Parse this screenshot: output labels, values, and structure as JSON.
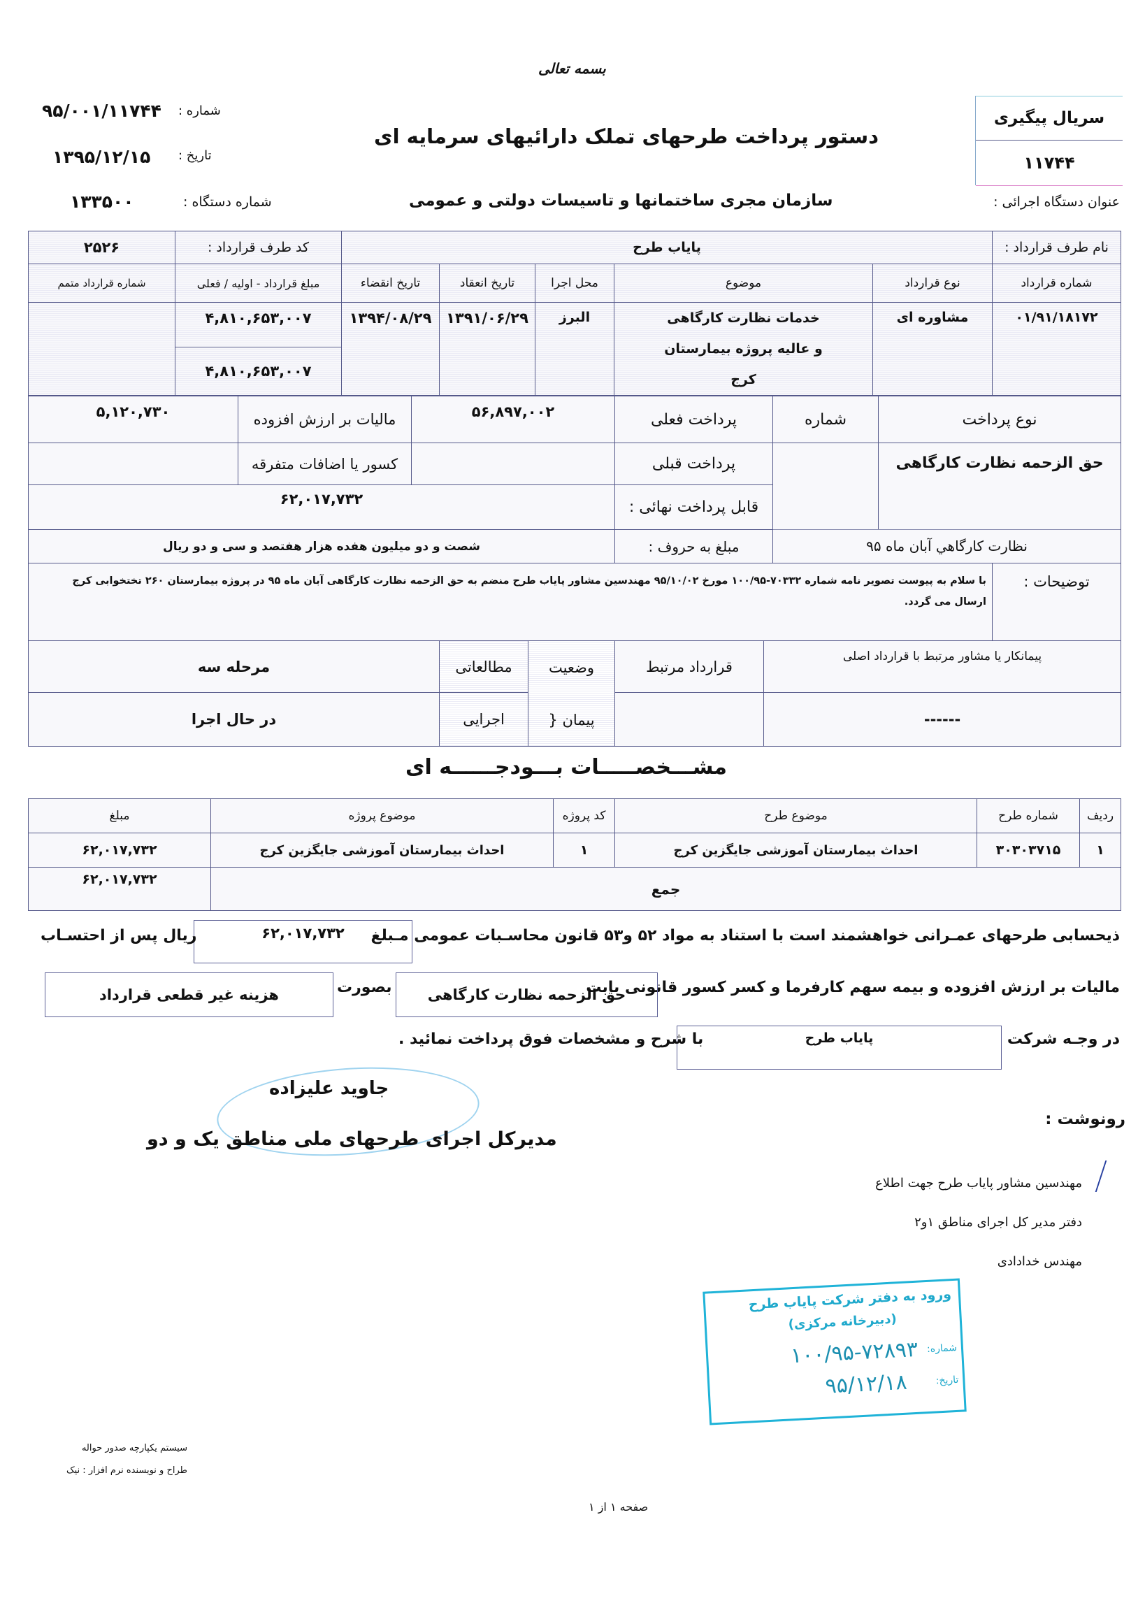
{
  "header": {
    "bismillah": "بسمه تعالی",
    "title": "دستور پرداخت طرحهای تملک دارائیهای سرمایه ای",
    "number_label": "شماره :",
    "number_value": "۹۵/۰۰۱/۱۱۷۴۴",
    "date_label": "تاریخ :",
    "date_value": "۱۳۹۵/۱۲/۱۵",
    "device_number_label": "شماره دستگاه :",
    "device_number_value": "۱۳۳۵۰۰",
    "executive_device_label": "عنوان دستگاه اجرائی :",
    "executive_device_value": "سازمان مجری ساختمانها و تاسیسات دولتی و عمومی",
    "tracking_serial_label": "سریال پیگیری",
    "tracking_serial_value": "۱۱۷۴۴"
  },
  "contract": {
    "party_name_label": "نام طرف قرارداد :",
    "party_name_value": "پایاب طرح",
    "party_code_label": "کد طرف قرارداد :",
    "party_code_value": "۲۵۲۶",
    "headers": {
      "contract_number": "شماره قرارداد",
      "contract_type": "نوع قرارداد",
      "subject": "موضوع",
      "location": "محل اجرا",
      "start_date": "تاریخ انعقاد",
      "end_date": "تاریخ انقضاء",
      "amount": "مبلغ قرارداد - اولیه / فعلی",
      "supplement_number": "شماره قرارداد متمم"
    },
    "values": {
      "contract_number": "۰۱/۹۱/۱۸۱۷۲",
      "contract_type": "مشاوره ای",
      "subject": "خدمات نظارت کارگاهی و عالیه پروژه بیمارستان کرج",
      "location": "البرز",
      "start_date": "۱۳۹۱/۰۶/۲۹",
      "end_date": "۱۳۹۴/۰۸/۲۹",
      "amount_initial": "۴,۸۱۰,۶۵۳,۰۰۷",
      "amount_current": "۴,۸۱۰,۶۵۳,۰۰۷",
      "supplement_number": ""
    }
  },
  "payment": {
    "type_label": "نوع پرداخت",
    "type_value": "حق الزحمه نظارت کارگاهی",
    "number_label": "شماره",
    "current_label": "پرداخت فعلی",
    "current_value": "۵۶,۸۹۷,۰۰۲",
    "previous_label": "پرداخت قبلی",
    "vat_label": "مالیات بر ارزش افزوده",
    "vat_value": "۵,۱۲۰,۷۳۰",
    "misc_label": "کسور یا اضافات متفرقه",
    "final_label": "قابل پرداخت نهائی :",
    "final_value": "۶۲,۰۱۷,۷۳۲",
    "words_label": "مبلغ به حروف :",
    "words_value": "شصت و دو میلیون هفده هزار هفتصد و سی و دو ریال",
    "period_note": "نظارت کارگاهي آبان ماه ۹۵"
  },
  "notes": {
    "label": "توضیحات :",
    "text": "با سلام به پیوست تصویر نامه شماره ۷۰۳۳۲-۱۰۰/۹۵ مورخ ۹۵/۱۰/۰۲ مهندسین مشاور پایاب طرح منضم به حق الزحمه نظارت کارگاهی آبان ماه ۹۵ در پروژه بیمارستان ۲۶۰ تختخوابی کرج ارسال می گردد."
  },
  "status": {
    "related_party_label": "پیمانکار یا مشاور مرتبط با قرارداد اصلی",
    "related_party_value": "------",
    "related_contract_label": "قرارداد مرتبط",
    "status_label": "وضعیت",
    "contract_label": "پیمان {",
    "study_label": "مطالعاتی",
    "execution_label": "اجرایی",
    "stage_value": "مرحله سه",
    "progress_value": "در حال اجرا"
  },
  "budget": {
    "title": "مشـــخصـــــات بـــودجــــــه ای",
    "headers": [
      "ردیف",
      "شماره طرح",
      "موضوع طرح",
      "کد پروژه",
      "موضوع پروژه",
      "مبلغ"
    ],
    "rows": [
      [
        "۱",
        "۳۰۳۰۳۷۱۵",
        "احداث بیمارستان آموزشی جایگزین کرج",
        "۱",
        "احداث بیمارستان آموزشی جایگزین کرج",
        "۶۲,۰۱۷,۷۳۲"
      ]
    ],
    "total_label": "جمع",
    "total_value": "۶۲,۰۱۷,۷۳۲"
  },
  "order": {
    "line1_text": "ذیحسابی طرحهای عمـرانی خواهشمند است با استناد به مواد ۵۲ و۵۳ قانون محاسـبات عمومی مـبلغ",
    "line1_amount": "۶۲,۰۱۷,۷۳۲",
    "line1_suffix": "ریال پس از احتسـاب",
    "line2_text": "مالیات بر ارزش افزوده و بیمه سهم کارفرما و کسر کسور قانونی بابت",
    "line2_box1": "حق الزحمه نظارت کارگاهی",
    "line2_mid": "بصورت",
    "line2_box2": "هزینه غیر قطعی قرارداد",
    "line3_prefix": "در وجـه شرکت",
    "line3_box": "پایاب طرح",
    "line3_suffix": "با شرح و مشخصات فوق پرداخت نمائید ."
  },
  "signature": {
    "name": "جاوید علیزاده",
    "title": "مدیرکل اجرای طرحهای ملی مناطق یک و دو"
  },
  "cc": {
    "label": "رونوشت :",
    "items": [
      "مهندسین مشاور پایاب طرح جهت اطلاع",
      "دفتر مدیر کل اجرای مناطق ۱و۲",
      "مهندس خدادادی"
    ]
  },
  "stamp": {
    "line1": "ورود به دفتر شرکت پایاب طرح",
    "line2": "(دبیرخانه مرکزی)",
    "number_label": "شماره:",
    "number_value": "۱۰۰/۹۵-۷۲۸۹۳",
    "date_label": "تاریخ:",
    "date_value": "۹۵/۱۲/۱۸"
  },
  "footer": {
    "system_line1": "سیستم یکپارچه صدور حواله",
    "system_line2": "طراح و نویسنده نرم افزار : نیک",
    "page": "صفحه ۱ از ۱"
  },
  "colors": {
    "ink": "#111111",
    "table_border": "#55598a",
    "stamp": "#1fb3d8"
  }
}
